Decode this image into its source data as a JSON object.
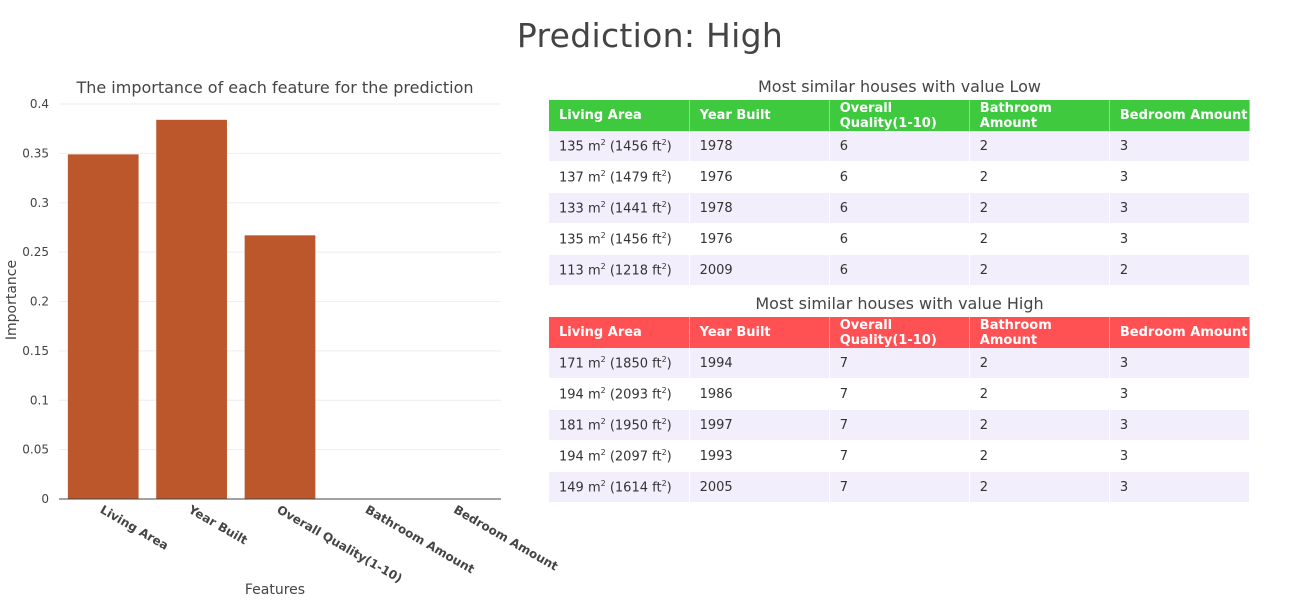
{
  "title": "Prediction: High",
  "chart_data": {
    "type": "bar",
    "title": "The importance of each feature for the prediction",
    "xlabel": "Features",
    "ylabel": "Importance",
    "categories": [
      "Living Area",
      "Year Built",
      "Overall Quality(1-10)",
      "Bathroom Amount",
      "Bedroom Amount"
    ],
    "values": [
      0.349,
      0.384,
      0.267,
      0,
      0
    ],
    "ylim": [
      0,
      0.4
    ],
    "yticks": [
      0,
      0.05,
      0.1,
      0.15,
      0.2,
      0.25,
      0.3,
      0.35,
      0.4
    ],
    "ytick_labels": [
      "0",
      "0.05",
      "0.1",
      "0.15",
      "0.2",
      "0.25",
      "0.3",
      "0.35",
      "0.4"
    ],
    "grid": true,
    "bar_color": "#bb572b"
  },
  "tables": {
    "low": {
      "title": "Most similar houses with value Low",
      "header_color": "#3fc93f",
      "columns": [
        "Living Area",
        "Year Built",
        "Overall Quality(1-10)",
        "Bathroom Amount",
        "Bedroom Amount"
      ],
      "rows": [
        {
          "area_m2": "135",
          "area_ft2": "1456",
          "year": "1978",
          "quality": "6",
          "bath": "2",
          "bed": "3"
        },
        {
          "area_m2": "137",
          "area_ft2": "1479",
          "year": "1976",
          "quality": "6",
          "bath": "2",
          "bed": "3"
        },
        {
          "area_m2": "133",
          "area_ft2": "1441",
          "year": "1978",
          "quality": "6",
          "bath": "2",
          "bed": "3"
        },
        {
          "area_m2": "135",
          "area_ft2": "1456",
          "year": "1976",
          "quality": "6",
          "bath": "2",
          "bed": "3"
        },
        {
          "area_m2": "113",
          "area_ft2": "1218",
          "year": "2009",
          "quality": "6",
          "bath": "2",
          "bed": "2"
        }
      ]
    },
    "high": {
      "title": "Most similar houses with value High",
      "header_color": "#ff5054",
      "columns": [
        "Living Area",
        "Year Built",
        "Overall Quality(1-10)",
        "Bathroom Amount",
        "Bedroom Amount"
      ],
      "rows": [
        {
          "area_m2": "171",
          "area_ft2": "1850",
          "year": "1994",
          "quality": "7",
          "bath": "2",
          "bed": "3"
        },
        {
          "area_m2": "194",
          "area_ft2": "2093",
          "year": "1986",
          "quality": "7",
          "bath": "2",
          "bed": "3"
        },
        {
          "area_m2": "181",
          "area_ft2": "1950",
          "year": "1997",
          "quality": "7",
          "bath": "2",
          "bed": "3"
        },
        {
          "area_m2": "194",
          "area_ft2": "2097",
          "year": "1993",
          "quality": "7",
          "bath": "2",
          "bed": "3"
        },
        {
          "area_m2": "149",
          "area_ft2": "1614",
          "year": "2005",
          "quality": "7",
          "bath": "2",
          "bed": "3"
        }
      ]
    }
  },
  "units": {
    "m2": "m",
    "ft2": "ft",
    "exp": "2"
  }
}
